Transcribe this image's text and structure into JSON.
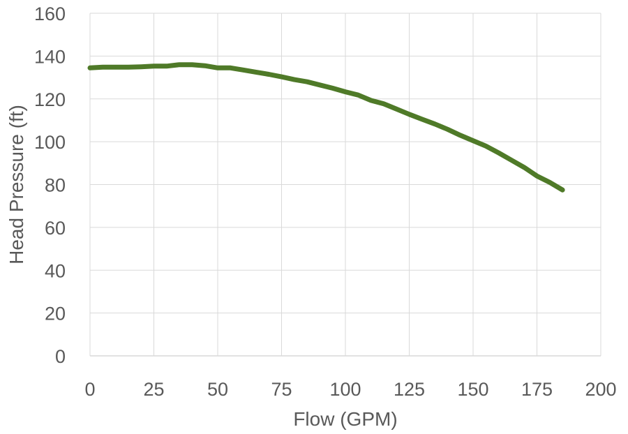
{
  "chart_data": {
    "type": "line",
    "xlabel": "Flow (GPM)",
    "ylabel": "Head Pressure (ft)",
    "xlim": [
      0,
      200
    ],
    "ylim": [
      0,
      160
    ],
    "x_ticks": [
      "0",
      "25",
      "50",
      "75",
      "100",
      "125",
      "150",
      "175",
      "200"
    ],
    "y_ticks": [
      "0",
      "20",
      "40",
      "60",
      "80",
      "100",
      "120",
      "140",
      "160"
    ],
    "grid": true,
    "legend": "none",
    "series": [
      {
        "color": "#4f7a28",
        "x": [
          0,
          5,
          10,
          15,
          20,
          25,
          30,
          35,
          40,
          45,
          50,
          55,
          60,
          65,
          70,
          75,
          80,
          85,
          90,
          95,
          100,
          105,
          110,
          115,
          120,
          125,
          130,
          135,
          140,
          145,
          150,
          155,
          160,
          165,
          170,
          175,
          180,
          185
        ],
        "y": [
          134.5,
          134.8,
          134.8,
          134.8,
          135.0,
          135.3,
          135.3,
          136.0,
          136.0,
          135.5,
          134.5,
          134.5,
          133.5,
          132.5,
          131.5,
          130.3,
          129.0,
          128.0,
          126.5,
          125.0,
          123.3,
          121.8,
          119.3,
          117.7,
          115.3,
          112.8,
          110.5,
          108.3,
          105.8,
          103.0,
          100.5,
          98.0,
          94.8,
          91.4,
          88.0,
          84.0,
          81.0,
          77.5
        ]
      }
    ]
  }
}
